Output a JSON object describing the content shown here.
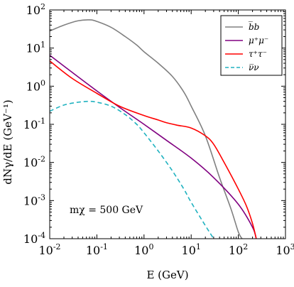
{
  "chart_data": {
    "type": "line",
    "title": "",
    "xlabel": "E (GeV)",
    "ylabel": "dNγ/dE (GeV⁻¹)",
    "xscale": "log",
    "yscale": "log",
    "xlim": [
      0.01,
      1000
    ],
    "ylim": [
      0.0001,
      100
    ],
    "x_ticks": [
      "10-2",
      "10-1",
      "100",
      "101",
      "102",
      "103"
    ],
    "y_ticks": [
      "10-4",
      "10-3",
      "10-2",
      "10-1",
      "100",
      "101",
      "102"
    ],
    "legend_position": "top-right",
    "annotation": "mχ = 500 GeV",
    "series": [
      {
        "name": "b̅b",
        "color": "#808080",
        "dash": "solid",
        "x": [
          0.01,
          0.02,
          0.04,
          0.07,
          0.1,
          0.2,
          0.4,
          0.7,
          1,
          2,
          4,
          7,
          10,
          20,
          40,
          70,
          100,
          120
        ],
        "y": [
          28,
          40,
          52,
          55,
          50,
          35,
          20,
          12,
          8,
          4,
          1.8,
          0.7,
          0.3,
          0.05,
          0.004,
          0.0006,
          0.00015,
          0.0001
        ]
      },
      {
        "name": "μ⁺μ⁻",
        "color": "#800080",
        "dash": "solid",
        "x": [
          0.01,
          0.03,
          0.1,
          0.3,
          1,
          3,
          10,
          30,
          100,
          200,
          240
        ],
        "y": [
          6.5,
          2.3,
          0.75,
          0.28,
          0.1,
          0.038,
          0.013,
          0.004,
          0.0008,
          0.0002,
          0.0001
        ]
      },
      {
        "name": "τ⁺τ⁻",
        "color": "#ff0000",
        "dash": "solid",
        "x": [
          0.01,
          0.03,
          0.1,
          0.3,
          1,
          2,
          3,
          5,
          10,
          20,
          30,
          50,
          100,
          150,
          200,
          240
        ],
        "y": [
          4.6,
          1.6,
          0.65,
          0.3,
          0.17,
          0.13,
          0.11,
          0.095,
          0.08,
          0.05,
          0.03,
          0.01,
          0.002,
          0.0007,
          0.00025,
          0.0001
        ]
      },
      {
        "name": "ν̅ν",
        "color": "#20b2c0",
        "dash": "dashed",
        "x": [
          0.01,
          0.02,
          0.04,
          0.07,
          0.1,
          0.2,
          0.4,
          0.7,
          1,
          2,
          4,
          7,
          10,
          20,
          30
        ],
        "y": [
          0.22,
          0.32,
          0.38,
          0.4,
          0.38,
          0.3,
          0.18,
          0.1,
          0.06,
          0.02,
          0.006,
          0.002,
          0.0009,
          0.00022,
          0.0001
        ]
      }
    ]
  }
}
